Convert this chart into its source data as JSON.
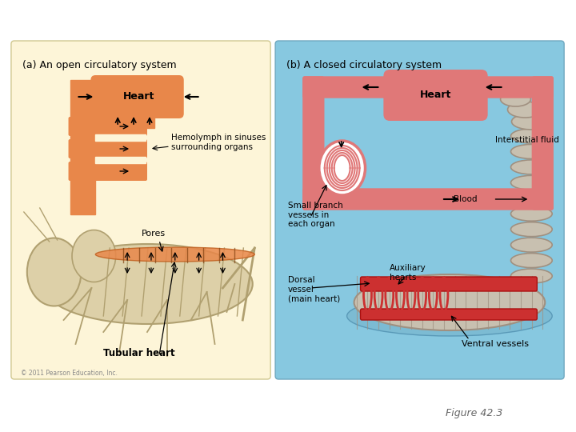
{
  "bg_color": "#ffffff",
  "panel_a_bg": "#fdf5d8",
  "panel_b_bg": "#87c8e0",
  "title_a": "(a) An open circulatory system",
  "title_b": "(b) A closed circulatory system",
  "heart_color_a": "#e8874a",
  "heart_color_b": "#e07878",
  "heart_outline_b": "#c85050",
  "figure_label": "Figure 42.3",
  "copyright": "© 2011 Pearson Education, Inc.",
  "grasshopper_body": "#ddd0a8",
  "grasshopper_edge": "#b0a070",
  "worm_body": "#c8c0b0",
  "worm_edge": "#a09080",
  "worm_vessel": "#cc3030",
  "worm_pool": "#7ab8d0"
}
